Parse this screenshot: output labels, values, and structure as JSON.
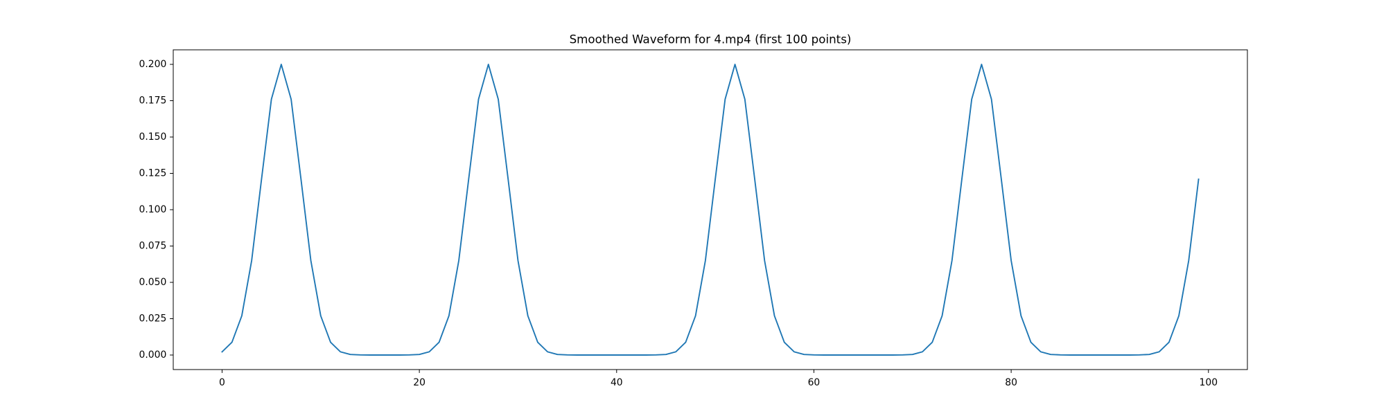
{
  "chart_data": {
    "type": "line",
    "title": "Smoothed Waveform for 4.mp4 (first 100 points)",
    "color": "#1f77b4",
    "x": [
      0,
      1,
      2,
      3,
      4,
      5,
      6,
      7,
      8,
      9,
      10,
      11,
      12,
      13,
      14,
      15,
      16,
      17,
      18,
      19,
      20,
      21,
      22,
      23,
      24,
      25,
      26,
      27,
      28,
      29,
      30,
      31,
      32,
      33,
      34,
      35,
      36,
      37,
      38,
      39,
      40,
      41,
      42,
      43,
      44,
      45,
      46,
      47,
      48,
      49,
      50,
      51,
      52,
      53,
      54,
      55,
      56,
      57,
      58,
      59,
      60,
      61,
      62,
      63,
      64,
      65,
      66,
      67,
      68,
      69,
      70,
      71,
      72,
      73,
      74,
      75,
      76,
      77,
      78,
      79,
      80,
      81,
      82,
      83,
      84,
      85,
      86,
      87,
      88,
      89,
      90,
      91,
      92,
      93,
      94,
      95,
      96,
      97,
      98,
      99
    ],
    "values": [
      0.0022,
      0.0088,
      0.027,
      0.065,
      0.121,
      0.176,
      0.2,
      0.176,
      0.121,
      0.065,
      0.027,
      0.0088,
      0.0022,
      0.0004,
      0.0001,
      0,
      0,
      0,
      0,
      0.0001,
      0.0004,
      0.0022,
      0.0088,
      0.027,
      0.065,
      0.121,
      0.176,
      0.2,
      0.176,
      0.121,
      0.065,
      0.027,
      0.0088,
      0.0022,
      0.0004,
      0.0001,
      0,
      0,
      0,
      0,
      0,
      0,
      0,
      0,
      0.0001,
      0.0004,
      0.0022,
      0.0088,
      0.027,
      0.065,
      0.121,
      0.176,
      0.2,
      0.176,
      0.121,
      0.065,
      0.027,
      0.0088,
      0.0022,
      0.0004,
      0.0001,
      0,
      0,
      0,
      0,
      0,
      0,
      0,
      0,
      0.0001,
      0.0004,
      0.0022,
      0.0088,
      0.027,
      0.065,
      0.121,
      0.176,
      0.2,
      0.176,
      0.121,
      0.065,
      0.027,
      0.0088,
      0.0022,
      0.0004,
      0.0001,
      0,
      0,
      0,
      0,
      0,
      0,
      0,
      0.0001,
      0.0004,
      0.0022,
      0.0088,
      0.027,
      0.065,
      0.121
    ],
    "xlim": [
      -4.95,
      103.95
    ],
    "xticks": [
      0,
      20,
      40,
      60,
      80,
      100
    ],
    "ylim": [
      -0.01,
      0.21
    ],
    "yticks": [
      {
        "value": 0,
        "label": "0.000"
      },
      {
        "value": 0.025,
        "label": "0.025"
      },
      {
        "value": 0.05,
        "label": "0.050"
      },
      {
        "value": 0.075,
        "label": "0.075"
      },
      {
        "value": 0.1,
        "label": "0.100"
      },
      {
        "value": 0.125,
        "label": "0.125"
      },
      {
        "value": 0.15,
        "label": "0.150"
      },
      {
        "value": 0.175,
        "label": "0.175"
      },
      {
        "value": 0.2,
        "label": "0.200"
      }
    ],
    "grid": false
  }
}
